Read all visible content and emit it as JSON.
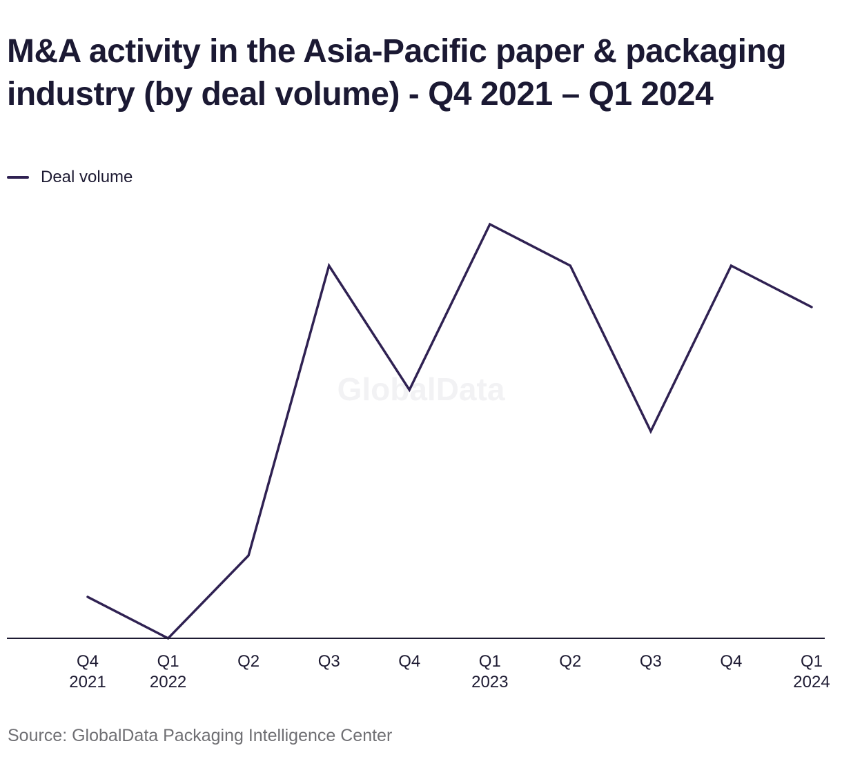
{
  "title": "M&A activity in the Asia-Pacific paper & packaging industry (by deal volume) - Q4 2021 – Q1 2024",
  "legend": {
    "label": "Deal volume"
  },
  "watermark": "GlobalData",
  "source": "Source: GlobalData Packaging Intelligence Center",
  "colors": {
    "series": "#2f2152",
    "axis": "#1d1a32",
    "text": "#1b1933",
    "muted_text": "#6f6f73",
    "watermark": "#f2f2f4"
  },
  "chart_data": {
    "type": "line",
    "title": "M&A activity in the Asia-Pacific paper & packaging industry (by deal volume) - Q4 2021 – Q1 2024",
    "xlabel": "",
    "ylabel": "",
    "x_labels": [
      [
        "Q4",
        "2021"
      ],
      [
        "Q1",
        "2022"
      ],
      [
        "Q2",
        ""
      ],
      [
        "Q3",
        ""
      ],
      [
        "Q4",
        ""
      ],
      [
        "Q1",
        "2023"
      ],
      [
        "Q2",
        ""
      ],
      [
        "Q3",
        ""
      ],
      [
        "Q4",
        ""
      ],
      [
        "Q1",
        "2024"
      ]
    ],
    "series": [
      {
        "name": "Deal volume",
        "values": [
          14,
          13,
          15,
          22,
          19,
          23,
          22,
          18,
          22,
          21
        ]
      }
    ],
    "ylim": [
      13,
      26
    ],
    "grid": false,
    "y_axis_visible": false,
    "legend_position": "top-left"
  }
}
